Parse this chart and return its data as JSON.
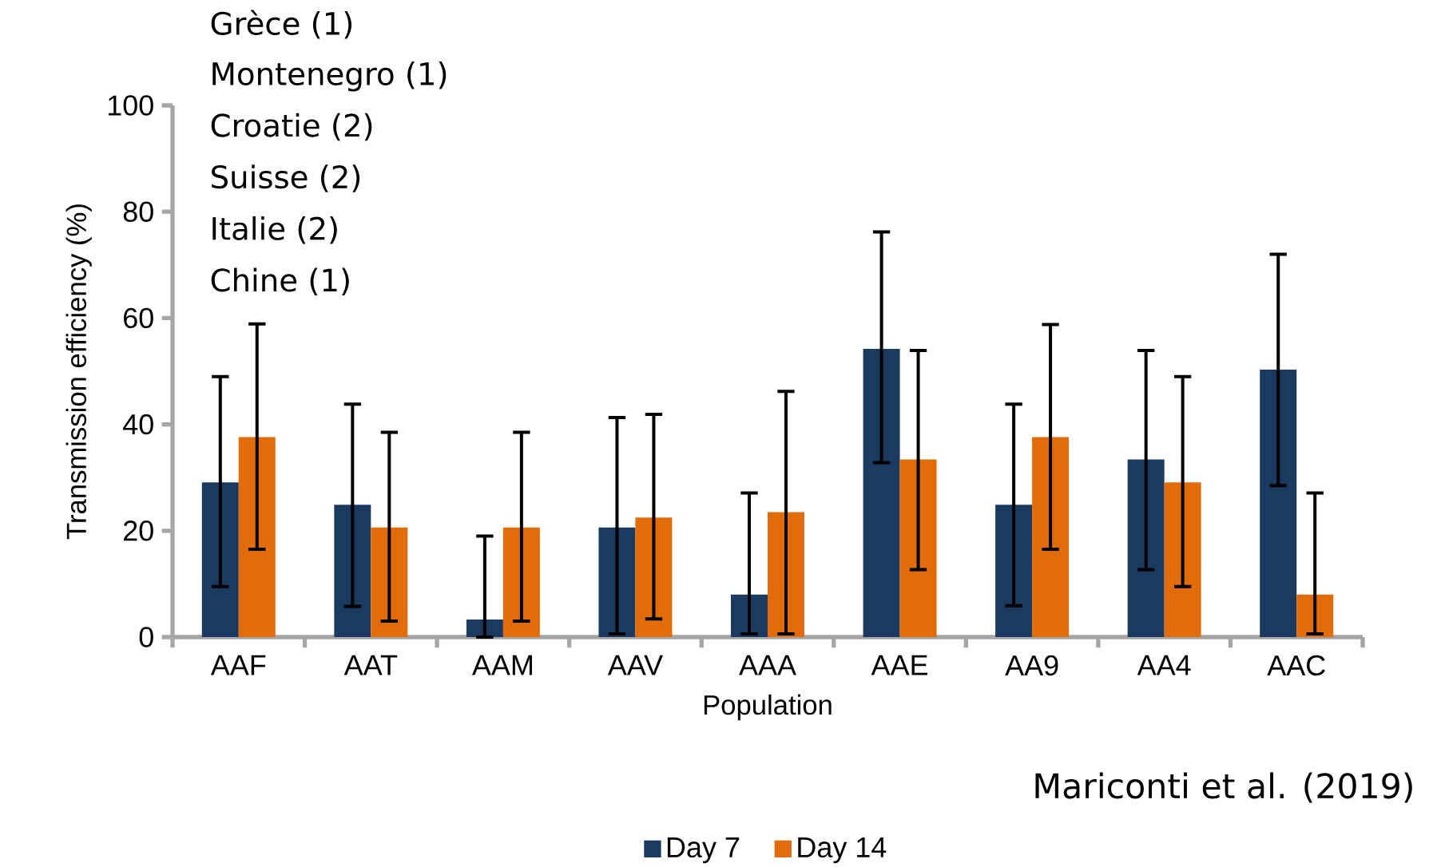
{
  "chart_data": {
    "type": "bar",
    "xlabel": "Population",
    "ylabel": "Transmission efficiency (%)",
    "categories": [
      "AAF",
      "AAT",
      "AAM",
      "AAV",
      "AAA",
      "AAE",
      "AA9",
      "AA4",
      "AAC"
    ],
    "series": [
      {
        "name": "Day 7",
        "color": "#1a3a5f",
        "values": [
          29.1,
          24.9,
          3.3,
          20.6,
          8.0,
          54.2,
          24.9,
          33.4,
          50.3
        ],
        "errors": [
          [
            9.5,
            49
          ],
          [
            5.8,
            43.8
          ],
          [
            0,
            19
          ],
          [
            0.6,
            41.3
          ],
          [
            0.6,
            27.1
          ],
          [
            32.8,
            76.2
          ],
          [
            5.9,
            43.8
          ],
          [
            12.7,
            53.9
          ],
          [
            28.5,
            72
          ]
        ]
      },
      {
        "name": "Day 14",
        "color": "#e36c0a",
        "values": [
          37.6,
          20.6,
          20.6,
          22.5,
          23.5,
          33.4,
          37.6,
          29.1,
          8.0
        ],
        "errors": [
          [
            16.5,
            58.9
          ],
          [
            3,
            38.5
          ],
          [
            3,
            38.5
          ],
          [
            3.4,
            41.9
          ],
          [
            0.6,
            46.2
          ],
          [
            12.7,
            53.9
          ],
          [
            16.5,
            58.8
          ],
          [
            9.5,
            49
          ],
          [
            0.6,
            27.1
          ]
        ]
      }
    ],
    "ylim": [
      0,
      100
    ],
    "yticks": [
      0,
      20,
      40,
      60,
      80,
      100
    ],
    "grid": false,
    "legend": "bottom",
    "annotations": [
      "Grèce (1)",
      "Montenegro (1)",
      "Croatie (2)",
      "Suisse (2)",
      "Italie (2)",
      "Chine (1)",
      "Mariconti et al. (2019)"
    ]
  }
}
